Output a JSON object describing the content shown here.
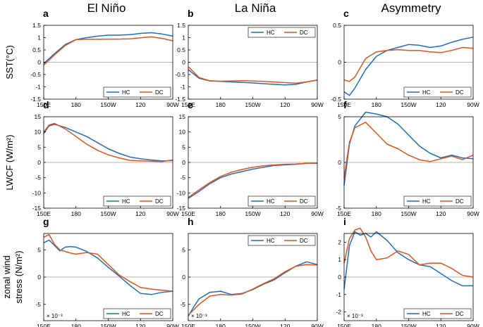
{
  "figure": {
    "column_titles": [
      "El Niño",
      "La Niña",
      "Asymmetry"
    ],
    "row_labels": [
      "SST(°C)",
      "LWCF (W/m²)",
      "zonal wind stress (N/m²)"
    ],
    "row_label_lines": [
      [
        "SST(°C)"
      ],
      [
        "LWCF (W/m²)"
      ],
      [
        "zonal wind",
        "stress (N/m²)"
      ]
    ],
    "series_names": [
      "HC",
      "DC"
    ],
    "series_colors": [
      "#1f6fbf",
      "#e2531c"
    ],
    "x_ticks": [
      "150E",
      "180",
      "150W",
      "120",
      "90W"
    ]
  },
  "chart_data": [
    {
      "type": "line",
      "panel": "a",
      "row": 0,
      "col": 0,
      "title": "El Niño",
      "ylabel": "SST(°C)",
      "x": [
        150,
        160,
        170,
        180,
        190,
        200,
        210,
        220,
        230,
        240,
        250,
        260,
        270
      ],
      "xlim": [
        150,
        270
      ],
      "ylim": [
        -1.5,
        1.5
      ],
      "yticks": [
        "-1.5",
        "-1",
        "-0.5",
        "0",
        "0.5",
        "1",
        "1.5"
      ],
      "ytick_values": [
        -1.5,
        -1,
        -0.5,
        0,
        0.5,
        1,
        1.5
      ],
      "legend": "bottom-right",
      "scale_note": "",
      "series": [
        {
          "name": "HC",
          "values": [
            -0.05,
            0.35,
            0.72,
            0.92,
            1.0,
            1.06,
            1.1,
            1.1,
            1.12,
            1.17,
            1.2,
            1.15,
            1.06
          ]
        },
        {
          "name": "DC",
          "values": [
            -0.12,
            0.3,
            0.68,
            0.92,
            0.93,
            0.93,
            0.94,
            0.94,
            0.95,
            0.99,
            1.03,
            0.97,
            0.87
          ]
        }
      ]
    },
    {
      "type": "line",
      "panel": "b",
      "row": 0,
      "col": 1,
      "title": "La Niña",
      "ylabel": "",
      "x": [
        150,
        160,
        170,
        180,
        190,
        200,
        210,
        220,
        230,
        240,
        250,
        260,
        270
      ],
      "xlim": [
        150,
        270
      ],
      "ylim": [
        -1.5,
        1.5
      ],
      "yticks": [
        "-1.5",
        "-1",
        "-0.5",
        "0",
        "0.5",
        "1",
        "1.5"
      ],
      "ytick_values": [
        -1.5,
        -1,
        -0.5,
        0,
        0.5,
        1,
        1.5
      ],
      "legend": "top-right",
      "scale_note": "",
      "series": [
        {
          "name": "HC",
          "values": [
            -0.3,
            -0.65,
            -0.76,
            -0.78,
            -0.8,
            -0.82,
            -0.84,
            -0.87,
            -0.9,
            -0.92,
            -0.9,
            -0.8,
            -0.72
          ]
        },
        {
          "name": "DC",
          "values": [
            -0.18,
            -0.62,
            -0.75,
            -0.77,
            -0.76,
            -0.75,
            -0.76,
            -0.78,
            -0.8,
            -0.83,
            -0.85,
            -0.8,
            -0.73
          ]
        }
      ]
    },
    {
      "type": "line",
      "panel": "c",
      "row": 0,
      "col": 2,
      "title": "Asymmetry",
      "ylabel": "",
      "x": [
        150,
        155,
        160,
        170,
        180,
        190,
        200,
        210,
        220,
        230,
        240,
        250,
        260,
        270
      ],
      "xlim": [
        150,
        270
      ],
      "ylim": [
        -0.5,
        0.5
      ],
      "yticks": [
        "-0.5",
        "0",
        "0.5"
      ],
      "ytick_values": [
        -0.5,
        0,
        0.5
      ],
      "legend": "bottom-right",
      "scale_note": "",
      "series": [
        {
          "name": "HC",
          "values": [
            -0.4,
            -0.45,
            -0.35,
            -0.1,
            0.08,
            0.16,
            0.2,
            0.24,
            0.23,
            0.2,
            0.22,
            0.27,
            0.31,
            0.34
          ]
        },
        {
          "name": "DC",
          "values": [
            -0.24,
            -0.26,
            -0.2,
            0.05,
            0.14,
            0.16,
            0.17,
            0.16,
            0.16,
            0.14,
            0.13,
            0.16,
            0.2,
            0.19
          ]
        }
      ]
    },
    {
      "type": "line",
      "panel": "d",
      "row": 1,
      "col": 0,
      "title": "",
      "ylabel": "LWCF (W/m²)",
      "x": [
        150,
        155,
        160,
        170,
        180,
        190,
        200,
        210,
        220,
        230,
        240,
        250,
        260,
        270
      ],
      "xlim": [
        150,
        270
      ],
      "ylim": [
        -15,
        15
      ],
      "yticks": [
        "-15",
        "-10",
        "-5",
        "0",
        "5",
        "10",
        "15"
      ],
      "ytick_values": [
        -15,
        -10,
        -5,
        0,
        5,
        10,
        15
      ],
      "legend": "bottom-right",
      "scale_note": "",
      "series": [
        {
          "name": "HC",
          "values": [
            9.5,
            12,
            12.5,
            11.5,
            10,
            8.5,
            6.5,
            4.5,
            3,
            1.8,
            1.2,
            0.8,
            0.5,
            0.6
          ]
        },
        {
          "name": "DC",
          "values": [
            10,
            12.3,
            12.8,
            11,
            8.5,
            6,
            4,
            2.5,
            1.5,
            0.7,
            0.5,
            0.4,
            0.3,
            0.8
          ]
        }
      ]
    },
    {
      "type": "line",
      "panel": "e",
      "row": 1,
      "col": 1,
      "title": "",
      "ylabel": "",
      "x": [
        150,
        160,
        170,
        180,
        190,
        200,
        210,
        220,
        230,
        240,
        250,
        260,
        270
      ],
      "xlim": [
        150,
        270
      ],
      "ylim": [
        -15,
        15
      ],
      "yticks": [
        "-15",
        "-10",
        "-5",
        "0",
        "5",
        "10",
        "15"
      ],
      "ytick_values": [
        -15,
        -10,
        -5,
        0,
        5,
        10,
        15
      ],
      "legend": "bottom-right",
      "scale_note": "",
      "series": [
        {
          "name": "HC",
          "values": [
            -11.8,
            -9.5,
            -7,
            -5,
            -3.8,
            -3,
            -2.2,
            -1.6,
            -1,
            -0.8,
            -0.6,
            -0.3,
            -0.3
          ]
        },
        {
          "name": "DC",
          "values": [
            -11.5,
            -9,
            -6.6,
            -4.6,
            -3.2,
            -2.3,
            -1.6,
            -1.1,
            -0.8,
            -0.6,
            -0.5,
            -0.3,
            -0.2
          ]
        }
      ]
    },
    {
      "type": "line",
      "panel": "f",
      "row": 1,
      "col": 2,
      "title": "",
      "ylabel": "",
      "x": [
        150,
        155,
        160,
        170,
        180,
        190,
        200,
        210,
        220,
        230,
        240,
        250,
        260,
        270
      ],
      "xlim": [
        150,
        270
      ],
      "ylim": [
        -5,
        5
      ],
      "yticks": [
        "-5",
        "0",
        "5"
      ],
      "ytick_values": [
        -5,
        0,
        5
      ],
      "legend": "bottom-right",
      "scale_note": "",
      "series": [
        {
          "name": "HC",
          "values": [
            -2.5,
            2,
            4,
            5.5,
            5.3,
            5,
            4.2,
            3,
            1.8,
            1,
            0.5,
            0.8,
            0.5,
            0.4
          ]
        },
        {
          "name": "DC",
          "values": [
            -1.7,
            2.2,
            3.8,
            4.4,
            3.2,
            2,
            1.5,
            0.8,
            0.3,
            0.1,
            0.4,
            0.7,
            0.3,
            0.8
          ]
        }
      ]
    },
    {
      "type": "line",
      "panel": "g",
      "row": 2,
      "col": 0,
      "title": "",
      "ylabel": "zonal wind stress (N/m²)",
      "x": [
        150,
        155,
        160,
        165,
        170,
        175,
        180,
        190,
        200,
        210,
        220,
        230,
        240,
        250,
        260,
        270
      ],
      "xlim": [
        150,
        270
      ],
      "ylim": [
        -8,
        8
      ],
      "yticks": [
        "-5",
        "0",
        "5"
      ],
      "ytick_values": [
        -5,
        0,
        5
      ],
      "legend": "bottom-right",
      "scale_note": "× 10⁻³",
      "series": [
        {
          "name": "HC",
          "values": [
            6.3,
            6.8,
            5.8,
            4.8,
            5.5,
            5.6,
            5.5,
            4.7,
            3.5,
            1.8,
            0.2,
            -1.5,
            -3,
            -3.2,
            -2.8,
            -2.6
          ]
        },
        {
          "name": "DC",
          "values": [
            7.3,
            7.8,
            6,
            5,
            4.7,
            4.4,
            4.2,
            4.5,
            4.2,
            2.3,
            0.4,
            -0.8,
            -1.9,
            -2.2,
            -2.4,
            -2.6
          ]
        }
      ]
    },
    {
      "type": "line",
      "panel": "h",
      "row": 2,
      "col": 1,
      "title": "",
      "ylabel": "",
      "x": [
        150,
        155,
        160,
        170,
        180,
        190,
        200,
        210,
        220,
        230,
        240,
        250,
        260,
        270
      ],
      "xlim": [
        150,
        270
      ],
      "ylim": [
        -8,
        8
      ],
      "yticks": [
        "-5",
        "0",
        "5"
      ],
      "ytick_values": [
        -5,
        0,
        5
      ],
      "legend": "top-right",
      "scale_note": "× 10⁻³",
      "series": [
        {
          "name": "HC",
          "values": [
            -7.2,
            -5.5,
            -4,
            -2.8,
            -2.6,
            -3.2,
            -3,
            -2.3,
            -1.3,
            -0.5,
            0.8,
            2,
            2.8,
            2.3
          ]
        },
        {
          "name": "DC",
          "values": [
            -7,
            -6,
            -5,
            -3.5,
            -3.2,
            -3.3,
            -3.1,
            -2.2,
            -1.2,
            -0.3,
            1,
            2,
            2.3,
            2.2
          ]
        }
      ]
    },
    {
      "type": "line",
      "panel": "i",
      "row": 2,
      "col": 2,
      "title": "",
      "ylabel": "",
      "x": [
        150,
        155,
        160,
        165,
        170,
        175,
        180,
        190,
        200,
        210,
        220,
        230,
        240,
        250,
        260,
        270
      ],
      "xlim": [
        150,
        270
      ],
      "ylim": [
        -2.5,
        2.5
      ],
      "yticks": [
        "-2",
        "-1",
        "0",
        "1",
        "2"
      ],
      "ytick_values": [
        -2,
        -1,
        0,
        1,
        2
      ],
      "legend": "bottom-right",
      "scale_note": "× 10⁻³",
      "series": [
        {
          "name": "HC",
          "values": [
            -0.7,
            1.8,
            2.6,
            2.4,
            2.5,
            2.3,
            2.6,
            2.1,
            1.4,
            1.0,
            0.7,
            0.6,
            0.2,
            -0.2,
            -0.5,
            -0.5
          ]
        },
        {
          "name": "DC",
          "values": [
            0.8,
            2.2,
            2.7,
            2.8,
            2.3,
            1.5,
            1.0,
            1.1,
            1.5,
            1.3,
            0.7,
            0.8,
            0.8,
            0.5,
            0.1,
            0
          ]
        }
      ]
    }
  ]
}
